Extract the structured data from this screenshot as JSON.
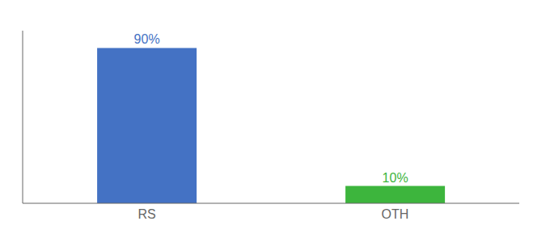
{
  "chart_data": {
    "type": "bar",
    "categories": [
      "RS",
      "OTH"
    ],
    "values": [
      90,
      10
    ],
    "value_labels": [
      "90%",
      "10%"
    ],
    "colors": [
      "#4472c4",
      "#3db53d"
    ],
    "ylim": [
      0,
      100
    ],
    "data_labels": true,
    "tick_labels": "x"
  }
}
